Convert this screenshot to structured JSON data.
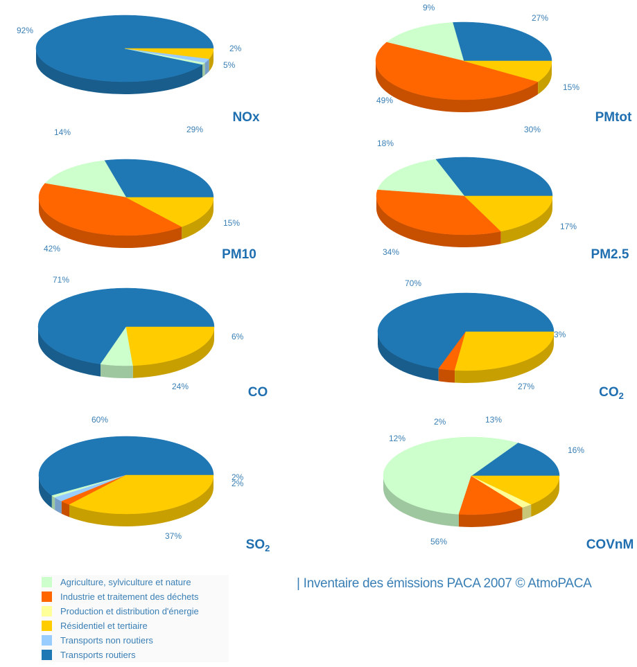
{
  "colors": {
    "agriculture": "#ccffcc",
    "industrie": "#ff6600",
    "production": "#ffff99",
    "residentiel": "#ffcc00",
    "transports_non_routiers": "#99ccff",
    "transports_routiers": "#1f77b4"
  },
  "chart_data": [
    {
      "type": "pie",
      "title": "NOx",
      "title_sub": "",
      "slices": [
        {
          "key": "transports_routiers",
          "value": 92,
          "label": "92%"
        },
        {
          "key": "agriculture",
          "value": 1,
          "label": ""
        },
        {
          "key": "transports_non_routiers",
          "value": 2,
          "label": "2%"
        },
        {
          "key": "residentiel",
          "value": 5,
          "label": "5%"
        }
      ]
    },
    {
      "type": "pie",
      "title": "PMtot",
      "title_sub": "",
      "slices": [
        {
          "key": "transports_routiers",
          "value": 27,
          "label": "27%"
        },
        {
          "key": "agriculture",
          "value": 15,
          "label": "15%"
        },
        {
          "key": "industrie",
          "value": 49,
          "label": "49%"
        },
        {
          "key": "residentiel",
          "value": 9,
          "label": "9%"
        }
      ]
    },
    {
      "type": "pie",
      "title": "PM10",
      "title_sub": "",
      "slices": [
        {
          "key": "transports_routiers",
          "value": 29,
          "label": "29%"
        },
        {
          "key": "agriculture",
          "value": 15,
          "label": "15%"
        },
        {
          "key": "industrie",
          "value": 42,
          "label": "42%"
        },
        {
          "key": "residentiel",
          "value": 14,
          "label": "14%"
        }
      ]
    },
    {
      "type": "pie",
      "title": "PM2.5",
      "title_sub": "",
      "slices": [
        {
          "key": "transports_routiers",
          "value": 30,
          "label": "30%"
        },
        {
          "key": "agriculture",
          "value": 17,
          "label": "17%"
        },
        {
          "key": "industrie",
          "value": 34,
          "label": "34%"
        },
        {
          "key": "residentiel",
          "value": 18,
          "label": "18%"
        }
      ]
    },
    {
      "type": "pie",
      "title": "CO",
      "title_sub": "",
      "slices": [
        {
          "key": "transports_routiers",
          "value": 71,
          "label": "71%"
        },
        {
          "key": "agriculture",
          "value": 6,
          "label": "6%"
        },
        {
          "key": "residentiel",
          "value": 24,
          "label": "24%"
        }
      ]
    },
    {
      "type": "pie",
      "title": "CO",
      "title_sub": "2",
      "slices": [
        {
          "key": "transports_routiers",
          "value": 70,
          "label": "70%"
        },
        {
          "key": "industrie",
          "value": 3,
          "label": "3%"
        },
        {
          "key": "residentiel",
          "value": 27,
          "label": "27%"
        }
      ]
    },
    {
      "type": "pie",
      "title": "SO",
      "title_sub": "2",
      "slices": [
        {
          "key": "transports_routiers",
          "value": 60,
          "label": "60%"
        },
        {
          "key": "agriculture",
          "value": 1,
          "label": ""
        },
        {
          "key": "transports_non_routiers",
          "value": 2,
          "label": "2%"
        },
        {
          "key": "industrie",
          "value": 2,
          "label": "2%"
        },
        {
          "key": "residentiel",
          "value": 37,
          "label": "37%"
        }
      ]
    },
    {
      "type": "pie",
      "title": "COVnM",
      "title_sub": "",
      "slices": [
        {
          "key": "transports_routiers",
          "value": 16,
          "label": "16%"
        },
        {
          "key": "agriculture",
          "value": 56,
          "label": "56%"
        },
        {
          "key": "industrie",
          "value": 12,
          "label": "12%"
        },
        {
          "key": "production",
          "value": 2,
          "label": "2%"
        },
        {
          "key": "residentiel",
          "value": 13,
          "label": "13%"
        }
      ]
    }
  ],
  "legend": [
    {
      "key": "agriculture",
      "label": "Agriculture, sylviculture et nature"
    },
    {
      "key": "industrie",
      "label": "Industrie et traitement des déchets"
    },
    {
      "key": "production",
      "label": "Production et distribution d'énergie"
    },
    {
      "key": "residentiel",
      "label": "Résidentiel et tertiaire"
    },
    {
      "key": "transports_non_routiers",
      "label": "Transports non routiers"
    },
    {
      "key": "transports_routiers",
      "label": "Transports routiers"
    }
  ],
  "credit": "| Inventaire des émissions PACA 2007 © AtmoPACA"
}
